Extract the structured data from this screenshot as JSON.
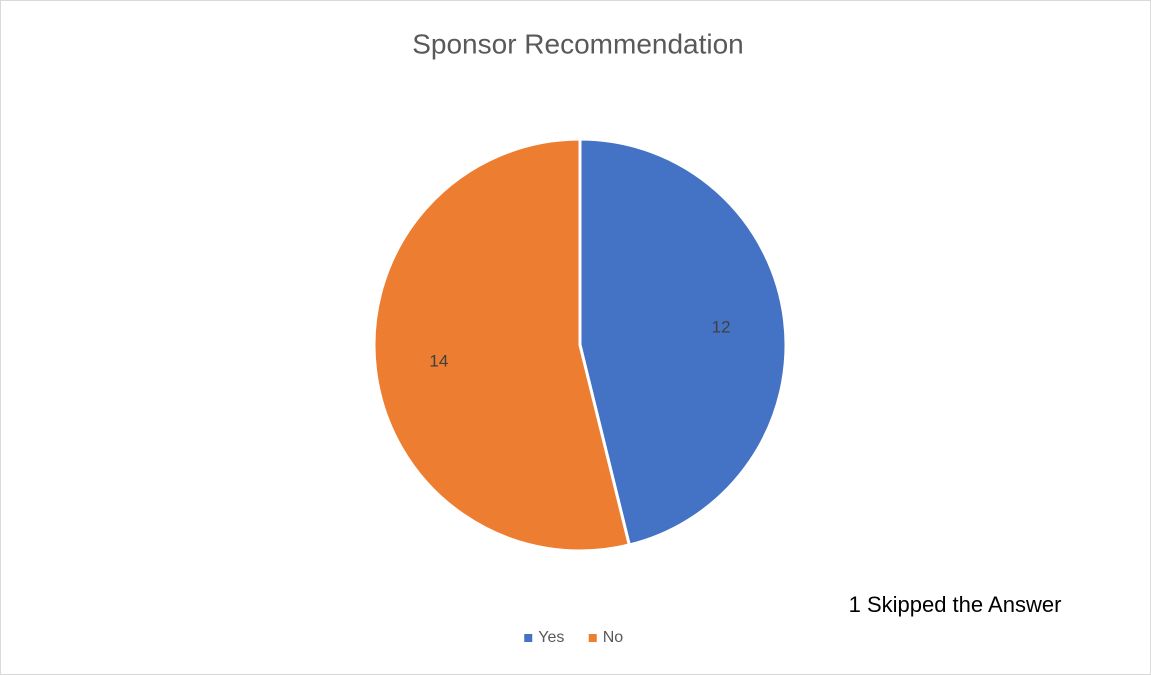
{
  "chart_data": {
    "type": "pie",
    "title": "Sponsor Recommendation",
    "categories": [
      "Yes",
      "No"
    ],
    "values": [
      12,
      14
    ],
    "colors": [
      "#4472c4",
      "#ed7d31"
    ],
    "annotation": "1 Skipped the Answer",
    "legend": "bottom"
  }
}
